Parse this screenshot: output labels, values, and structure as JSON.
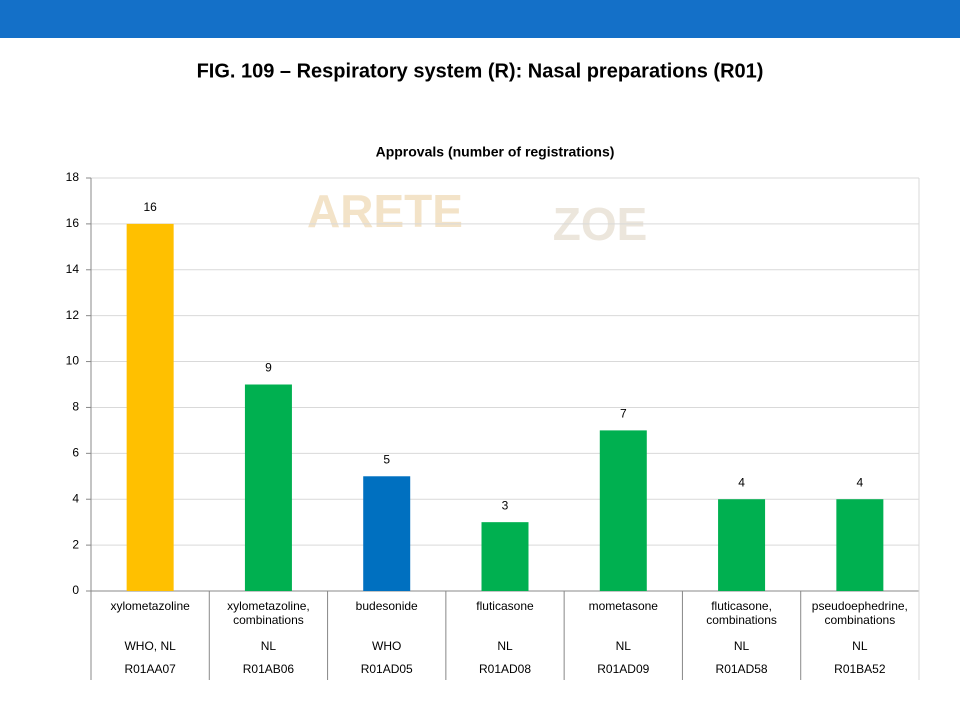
{
  "header": {
    "title": "FIG. 109 – Respiratory system (R): Nasal preparations (R01)"
  },
  "watermark": [
    "ARETE",
    "ZOE"
  ],
  "chart_data": {
    "type": "bar",
    "title": "Approvals (number of registrations)",
    "categories": [
      "xylometazoline",
      "xylometazoline, combinations",
      "budesonide",
      "fluticasone",
      "mometasone",
      "fluticasone, combinations",
      "pseudoephedrine, combinations"
    ],
    "sources": [
      "WHO, NL",
      "NL",
      "WHO",
      "NL",
      "NL",
      "NL",
      "NL"
    ],
    "codes": [
      "R01AA07",
      "R01AB06",
      "R01AD05",
      "R01AD08",
      "R01AD09",
      "R01AD58",
      "R01BA52"
    ],
    "values": [
      16,
      9,
      5,
      3,
      7,
      4,
      4
    ],
    "colors": [
      "#ffc000",
      "#00b050",
      "#0070c0",
      "#00b050",
      "#00b050",
      "#00b050",
      "#00b050"
    ],
    "ylim": [
      0,
      18
    ],
    "yticks": [
      0,
      2,
      4,
      6,
      8,
      10,
      12,
      14,
      16,
      18
    ],
    "grid": true
  }
}
